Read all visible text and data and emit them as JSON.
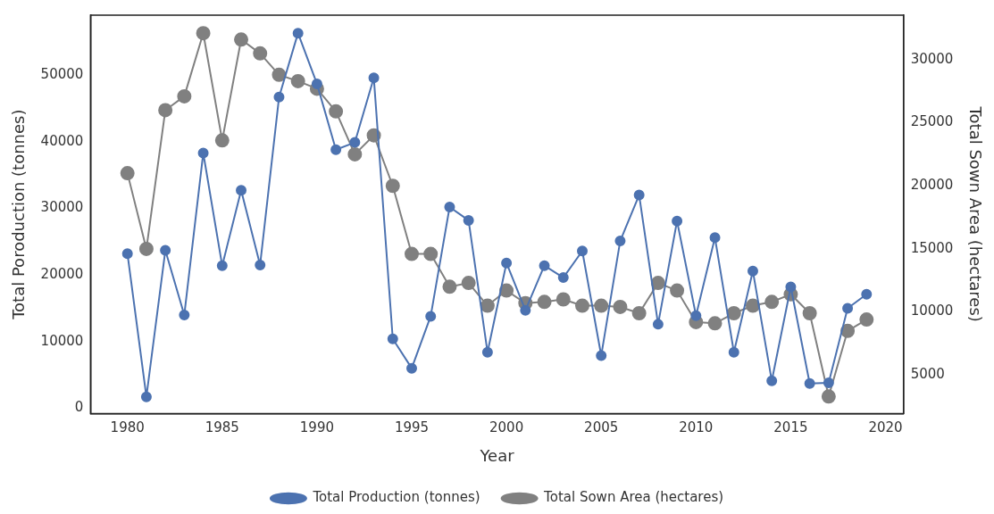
{
  "chart_data": {
    "type": "line",
    "xlabel": "Year",
    "ylabel": "Total Poroduction (tonnes)",
    "y2label": "Total Sown Area (hectares)",
    "x": [
      1980,
      1981,
      1982,
      1983,
      1984,
      1985,
      1986,
      1987,
      1988,
      1989,
      1990,
      1991,
      1992,
      1993,
      1994,
      1995,
      1996,
      1997,
      1998,
      1999,
      2000,
      2001,
      2002,
      2003,
      2004,
      2005,
      2006,
      2007,
      2008,
      2009,
      2010,
      2011,
      2012,
      2013,
      2014,
      2015,
      2016,
      2017,
      2018,
      2019
    ],
    "series": [
      {
        "name": "Total Production (tonnes)",
        "color": "#4c72b0",
        "values": [
          23200,
          1700,
          23700,
          14000,
          38300,
          21400,
          32700,
          21500,
          46700,
          56300,
          48700,
          38800,
          39900,
          49600,
          10400,
          6000,
          13800,
          30200,
          28200,
          8400,
          21800,
          14700,
          21400,
          19600,
          23600,
          7900,
          25100,
          32000,
          12600,
          28100,
          13900,
          25600,
          8400,
          20600,
          4100,
          18200,
          3700,
          3800,
          15000,
          17100
        ]
      },
      {
        "name": "Total Sown Area (hectares)",
        "color": "#808080",
        "axis": "y2",
        "values": [
          21000,
          15000,
          26000,
          27100,
          32100,
          23600,
          31600,
          30500,
          28800,
          28300,
          27700,
          25900,
          22500,
          24000,
          20000,
          14600,
          14600,
          12000,
          12300,
          10500,
          11700,
          10700,
          10800,
          11000,
          10500,
          10500,
          10400,
          9900,
          12300,
          11700,
          9200,
          9100,
          9900,
          10500,
          10800,
          11400,
          9900,
          3300,
          8500,
          9400
        ]
      }
    ],
    "xlim": [
      1978.05,
      2020.95
    ],
    "xticks": [
      1980,
      1985,
      1990,
      1995,
      2000,
      2005,
      2010,
      2015,
      2020
    ],
    "ylim": [
      -800,
      59000
    ],
    "yticks": [
      0,
      10000,
      20000,
      30000,
      40000,
      50000
    ],
    "y2lim": [
      1950,
      33530
    ],
    "y2ticks": [
      5000,
      10000,
      15000,
      20000,
      25000,
      30000
    ],
    "grid": false,
    "legend": "bottom",
    "marker": "circle",
    "line_style": "solid"
  }
}
